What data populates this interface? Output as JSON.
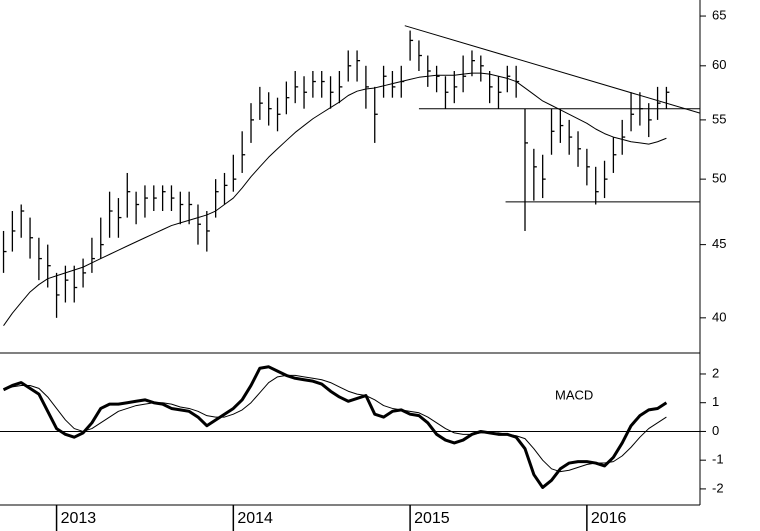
{
  "chart_data": [
    {
      "type": "ohlc",
      "x": [
        2012.7,
        2012.75,
        2012.8,
        2012.85,
        2012.9,
        2012.95,
        2013.0,
        2013.05,
        2013.1,
        2013.15,
        2013.2,
        2013.25,
        2013.3,
        2013.35,
        2013.4,
        2013.45,
        2013.5,
        2013.55,
        2013.6,
        2013.65,
        2013.7,
        2013.75,
        2013.8,
        2013.85,
        2013.9,
        2013.95,
        2014.0,
        2014.05,
        2014.1,
        2014.15,
        2014.2,
        2014.25,
        2014.3,
        2014.35,
        2014.4,
        2014.45,
        2014.5,
        2014.55,
        2014.6,
        2014.65,
        2014.7,
        2014.75,
        2014.8,
        2014.85,
        2014.9,
        2014.95,
        2015.0,
        2015.05,
        2015.1,
        2015.15,
        2015.2,
        2015.25,
        2015.3,
        2015.35,
        2015.4,
        2015.45,
        2015.5,
        2015.55,
        2015.6,
        2015.65,
        2015.7,
        2015.75,
        2015.8,
        2015.85,
        2015.9,
        2015.95,
        2016.0,
        2016.05,
        2016.1,
        2016.15,
        2016.2,
        2016.25,
        2016.3,
        2016.35,
        2016.4,
        2016.45
      ],
      "high": [
        46,
        47.5,
        48,
        47,
        45.5,
        45,
        43,
        43.5,
        43.5,
        44,
        45.5,
        47,
        49,
        48.5,
        50.5,
        49,
        49.5,
        49.5,
        49.5,
        49.5,
        49,
        49,
        48,
        47.5,
        50,
        50.5,
        52,
        54,
        56.5,
        58,
        57.5,
        57,
        58.5,
        59.5,
        59,
        59.5,
        59.5,
        59,
        59.5,
        61.5,
        61.5,
        60,
        58,
        60,
        59.5,
        60,
        63.5,
        62.5,
        61,
        60,
        59,
        59.5,
        61,
        61.5,
        61,
        59.5,
        59,
        60,
        60,
        56,
        52.5,
        52,
        56,
        56,
        55,
        54,
        52.5,
        51,
        51.5,
        53.5,
        55,
        57.5,
        57.5,
        56.5,
        58,
        58
      ],
      "low": [
        43,
        44.5,
        45.5,
        44,
        42.5,
        42,
        40,
        41,
        41,
        42,
        43,
        44,
        45.5,
        45.5,
        47,
        46.5,
        47,
        47.5,
        47.5,
        47.5,
        46.5,
        46.5,
        45,
        44.5,
        47,
        48,
        49,
        50.5,
        53,
        55,
        54.5,
        54,
        55.5,
        56.5,
        56,
        57,
        57,
        56,
        56.5,
        58.5,
        58.5,
        56,
        53,
        57,
        57,
        57,
        60.5,
        59.5,
        58,
        57.5,
        56,
        56.5,
        57.5,
        59,
        58.5,
        56.5,
        56,
        57.5,
        57,
        46,
        48.3,
        48.5,
        52,
        53,
        52,
        51,
        49.5,
        48,
        48.5,
        50.5,
        52,
        54,
        54.5,
        53.5,
        55,
        56
      ],
      "close": [
        44.5,
        46,
        47.5,
        45.5,
        44,
        43.5,
        41.5,
        42.5,
        42,
        43,
        44,
        45,
        47.5,
        47,
        49,
        48,
        48.5,
        48.5,
        49,
        48.5,
        48,
        48,
        46.5,
        46,
        49,
        49.5,
        50,
        52,
        55,
        56.5,
        56,
        55.5,
        57,
        58,
        57.5,
        58.5,
        58.5,
        57.5,
        58,
        60,
        60.5,
        58,
        55.5,
        59,
        58,
        58.5,
        62.5,
        61,
        59.5,
        59,
        57.5,
        58,
        59,
        60.5,
        60,
        58,
        57.5,
        59,
        58.5,
        53,
        51,
        50,
        54,
        54.5,
        53.5,
        52.5,
        51,
        49,
        50,
        52,
        53.5,
        55.5,
        56,
        55,
        56.5,
        57.5
      ],
      "color": "#000000",
      "series": [
        {
          "color": "#000000",
          "line_width": 1,
          "values": [
            39.5,
            40.3,
            41.0,
            41.7,
            42.2,
            42.6,
            42.8,
            43.0,
            43.2,
            43.4,
            43.7,
            44.0,
            44.3,
            44.6,
            44.9,
            45.2,
            45.5,
            45.8,
            46.1,
            46.4,
            46.6,
            46.8,
            47.0,
            47.2,
            47.5,
            48.0,
            48.5,
            49.3,
            50.2,
            51.0,
            51.8,
            52.5,
            53.2,
            53.9,
            54.5,
            55.1,
            55.6,
            56.1,
            56.6,
            57.2,
            57.6,
            57.8,
            57.9,
            58.1,
            58.3,
            58.5,
            58.7,
            58.9,
            59.0,
            59.1,
            59.1,
            59.1,
            59.2,
            59.3,
            59.3,
            59.2,
            59.0,
            58.8,
            58.5,
            57.9,
            57.3,
            56.7,
            56.3,
            55.9,
            55.5,
            55.1,
            54.7,
            54.2,
            53.8,
            53.5,
            53.3,
            53.1,
            53.0,
            52.9,
            53.1,
            53.4
          ]
        }
      ],
      "lines": [
        {
          "x": [
            2014.97,
            2016.64
          ],
          "y": [
            64.0,
            55.6
          ]
        },
        {
          "x": [
            2015.05,
            2016.64
          ],
          "y": [
            56.0,
            56.0
          ]
        },
        {
          "x": [
            2015.54,
            2016.64
          ],
          "y": [
            48.2,
            48.2
          ]
        }
      ],
      "xlim": [
        2012.68,
        2016.64
      ],
      "ylim": [
        37.8,
        66.7
      ],
      "yticks": [
        40,
        45,
        50,
        55,
        60,
        65
      ],
      "log_scale": true
    },
    {
      "type": "line",
      "annotation": "MACD",
      "x": [
        2012.7,
        2012.75,
        2012.8,
        2012.85,
        2012.9,
        2012.95,
        2013.0,
        2013.05,
        2013.1,
        2013.15,
        2013.2,
        2013.25,
        2013.3,
        2013.35,
        2013.4,
        2013.45,
        2013.5,
        2013.55,
        2013.6,
        2013.65,
        2013.7,
        2013.75,
        2013.8,
        2013.85,
        2013.9,
        2013.95,
        2014.0,
        2014.05,
        2014.1,
        2014.15,
        2014.2,
        2014.25,
        2014.3,
        2014.35,
        2014.4,
        2014.45,
        2014.5,
        2014.55,
        2014.6,
        2014.65,
        2014.7,
        2014.75,
        2014.8,
        2014.85,
        2014.9,
        2014.95,
        2015.0,
        2015.05,
        2015.1,
        2015.15,
        2015.2,
        2015.25,
        2015.3,
        2015.35,
        2015.4,
        2015.45,
        2015.5,
        2015.55,
        2015.6,
        2015.65,
        2015.7,
        2015.75,
        2015.8,
        2015.85,
        2015.9,
        2015.95,
        2016.0,
        2016.05,
        2016.1,
        2016.15,
        2016.2,
        2016.25,
        2016.3,
        2016.35,
        2016.4,
        2016.45
      ],
      "series": [
        {
          "color": "#000000",
          "line_width": 3,
          "values": [
            1.45,
            1.6,
            1.7,
            1.5,
            1.3,
            0.7,
            0.1,
            -0.1,
            -0.2,
            -0.05,
            0.3,
            0.8,
            0.95,
            0.95,
            1.0,
            1.05,
            1.1,
            1.0,
            0.95,
            0.8,
            0.75,
            0.7,
            0.5,
            0.2,
            0.4,
            0.6,
            0.8,
            1.1,
            1.6,
            2.2,
            2.25,
            2.1,
            1.95,
            1.85,
            1.8,
            1.75,
            1.65,
            1.4,
            1.2,
            1.05,
            1.15,
            1.25,
            0.6,
            0.5,
            0.7,
            0.75,
            0.6,
            0.55,
            0.3,
            -0.1,
            -0.3,
            -0.4,
            -0.3,
            -0.1,
            0.0,
            -0.05,
            -0.1,
            -0.1,
            -0.2,
            -0.6,
            -1.5,
            -1.95,
            -1.7,
            -1.3,
            -1.1,
            -1.05,
            -1.05,
            -1.1,
            -1.2,
            -0.9,
            -0.4,
            0.2,
            0.55,
            0.75,
            0.8,
            1.0
          ]
        },
        {
          "color": "#000000",
          "line_width": 1,
          "values": [
            1.45,
            1.55,
            1.6,
            1.6,
            1.5,
            1.2,
            0.8,
            0.4,
            0.1,
            0.0,
            0.1,
            0.3,
            0.5,
            0.7,
            0.8,
            0.9,
            0.95,
            1.0,
            1.0,
            0.95,
            0.85,
            0.8,
            0.7,
            0.55,
            0.5,
            0.5,
            0.6,
            0.75,
            1.0,
            1.35,
            1.7,
            1.9,
            1.95,
            1.95,
            1.9,
            1.85,
            1.8,
            1.7,
            1.55,
            1.4,
            1.3,
            1.25,
            1.1,
            0.9,
            0.8,
            0.75,
            0.7,
            0.65,
            0.5,
            0.3,
            0.1,
            -0.05,
            -0.1,
            -0.1,
            -0.05,
            -0.05,
            -0.05,
            -0.1,
            -0.15,
            -0.25,
            -0.6,
            -1.0,
            -1.3,
            -1.4,
            -1.35,
            -1.25,
            -1.15,
            -1.1,
            -1.1,
            -1.05,
            -0.85,
            -0.55,
            -0.2,
            0.1,
            0.3,
            0.5
          ]
        }
      ],
      "xlim": [
        2012.68,
        2016.64
      ],
      "xticks": [
        2013,
        2014,
        2015,
        2016
      ],
      "ylim": [
        -2.56,
        2.73
      ],
      "yticks": [
        -2,
        -1,
        0,
        1,
        2
      ],
      "zero_line": true
    }
  ]
}
